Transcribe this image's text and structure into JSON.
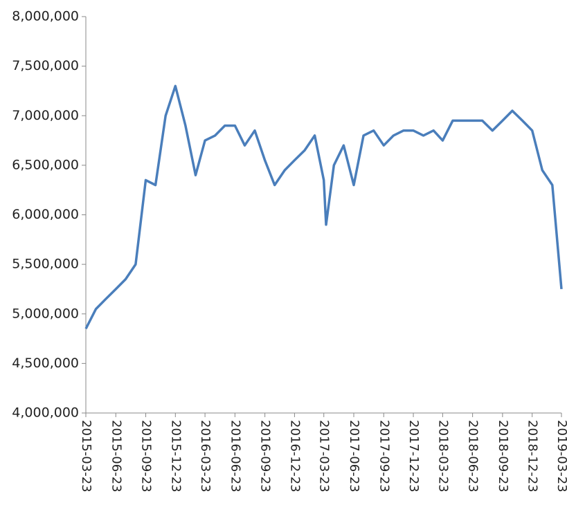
{
  "chart_data": {
    "type": "line",
    "x": [
      "2015-03-23",
      "2015-04-23",
      "2015-05-23",
      "2015-06-23",
      "2015-07-23",
      "2015-08-23",
      "2015-09-23",
      "2015-10-23",
      "2015-11-23",
      "2015-12-23",
      "2016-01-23",
      "2016-02-23",
      "2016-03-23",
      "2016-04-23",
      "2016-05-23",
      "2016-06-23",
      "2016-07-23",
      "2016-08-23",
      "2016-09-23",
      "2016-10-23",
      "2016-11-23",
      "2016-12-23",
      "2017-01-23",
      "2017-02-23",
      "2017-03-23",
      "2017-03-30",
      "2017-04-23",
      "2017-05-23",
      "2017-06-23",
      "2017-07-23",
      "2017-08-23",
      "2017-09-23",
      "2017-10-23",
      "2017-11-23",
      "2017-12-23",
      "2018-01-23",
      "2018-02-23",
      "2018-03-23",
      "2018-04-23",
      "2018-05-23",
      "2018-06-23",
      "2018-07-23",
      "2018-08-23",
      "2018-09-23",
      "2018-10-23",
      "2018-11-23",
      "2018-12-23",
      "2019-01-23",
      "2019-02-23",
      "2019-03-23"
    ],
    "series": [
      {
        "name": "value",
        "color": "#4a7ebb",
        "values": [
          4850000,
          5050000,
          5150000,
          5250000,
          5350000,
          5500000,
          6350000,
          6300000,
          7000000,
          7300000,
          6900000,
          6400000,
          6750000,
          6800000,
          6900000,
          6900000,
          6700000,
          6850000,
          6550000,
          6300000,
          6450000,
          6550000,
          6650000,
          6800000,
          6350000,
          5900000,
          6500000,
          6700000,
          6300000,
          6800000,
          6850000,
          6700000,
          6800000,
          6850000,
          6850000,
          6800000,
          6850000,
          6750000,
          6950000,
          6950000,
          6950000,
          6950000,
          6850000,
          6950000,
          7050000,
          6950000,
          6850000,
          6450000,
          6300000,
          5250000
        ]
      }
    ],
    "xlim": [
      "2015-03-23",
      "2019-03-23"
    ],
    "xticks": [
      "2015-03-23",
      "2015-06-23",
      "2015-09-23",
      "2015-12-23",
      "2016-03-23",
      "2016-06-23",
      "2016-09-23",
      "2016-12-23",
      "2017-03-23",
      "2017-06-23",
      "2017-09-23",
      "2017-12-23",
      "2018-03-23",
      "2018-06-23",
      "2018-09-23",
      "2018-12-23",
      "2019-03-23"
    ],
    "ylim": [
      4000000,
      8000000
    ],
    "yticks": [
      {
        "value": 4000000,
        "label": "4,000,000"
      },
      {
        "value": 4500000,
        "label": "4,500,000"
      },
      {
        "value": 5000000,
        "label": "5,000,000"
      },
      {
        "value": 5500000,
        "label": "5,500,000"
      },
      {
        "value": 6000000,
        "label": "6,000,000"
      },
      {
        "value": 6500000,
        "label": "6,500,000"
      },
      {
        "value": 7000000,
        "label": "7,000,000"
      },
      {
        "value": 7500000,
        "label": "7,500,000"
      },
      {
        "value": 8000000,
        "label": "8,000,000"
      }
    ]
  }
}
